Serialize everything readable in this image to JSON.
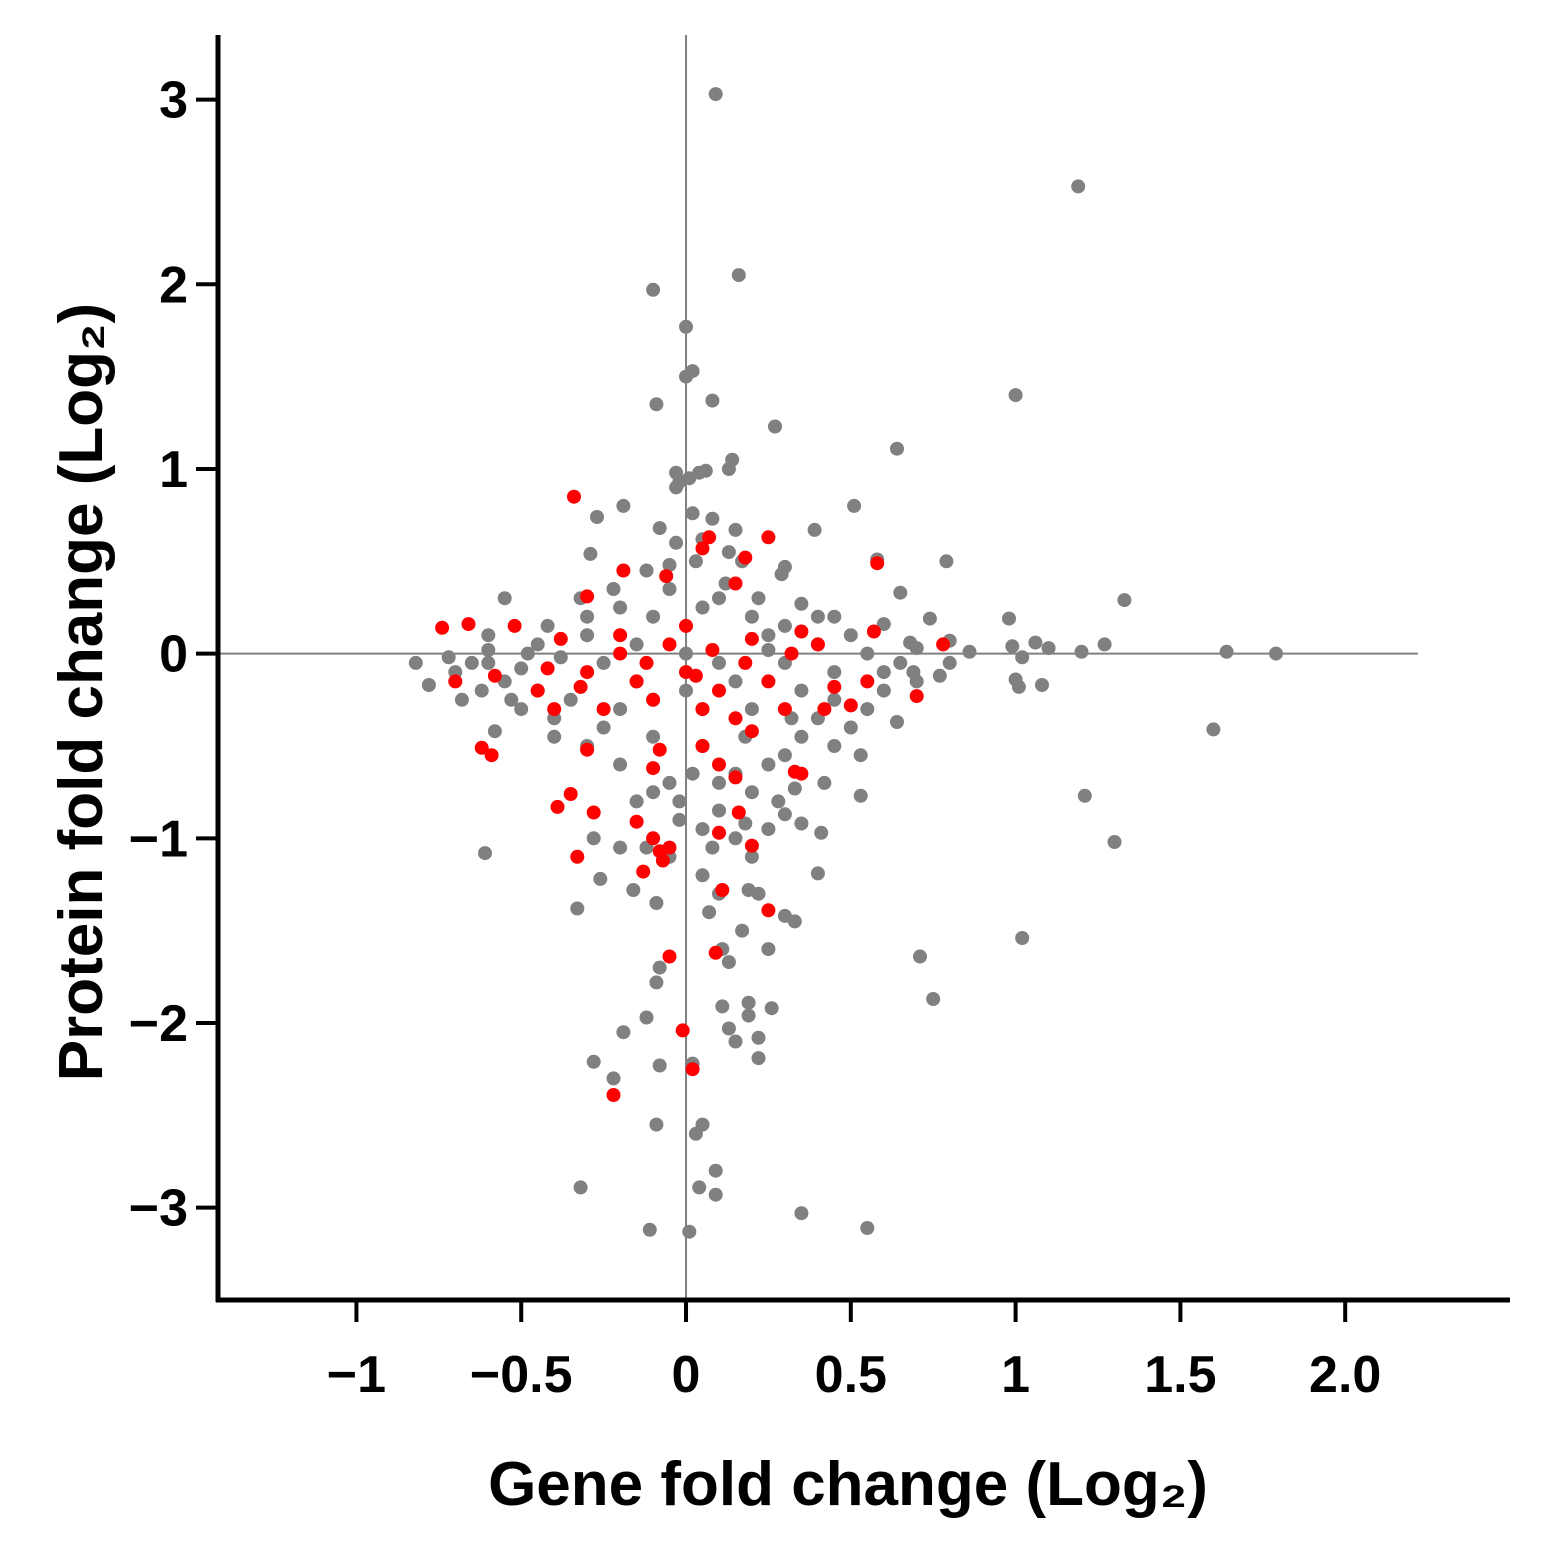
{
  "chart_data": {
    "type": "scatter",
    "xlabel": "Gene fold change (Log₂)",
    "ylabel": "Protein fold change (Log₂)",
    "xlim": [
      -1.42,
      2.5
    ],
    "ylim": [
      -3.5,
      3.35
    ],
    "x_ticks": [
      -1,
      -0.5,
      0,
      0.5,
      1,
      1.5,
      2.0
    ],
    "x_tick_labels": [
      "−1",
      "−0.5",
      "0",
      "0.5",
      "1",
      "1.5",
      "2.0"
    ],
    "y_ticks": [
      -3,
      -2,
      -1,
      0,
      1,
      2,
      3
    ],
    "y_tick_labels": [
      "−3",
      "−2",
      "−1",
      "0",
      "1",
      "2",
      "3"
    ],
    "grid": false,
    "reference_lines": {
      "x": 0,
      "y": 0
    },
    "series": [
      {
        "color": "#808080",
        "points": [
          [
            0.09,
            3.03
          ],
          [
            1.19,
            2.53
          ],
          [
            0.16,
            2.05
          ],
          [
            -0.1,
            1.97
          ],
          [
            0.0,
            1.77
          ],
          [
            0.0,
            1.5
          ],
          [
            0.02,
            1.53
          ],
          [
            0.08,
            1.37
          ],
          [
            -0.09,
            1.35
          ],
          [
            1.0,
            1.4
          ],
          [
            0.27,
            1.23
          ],
          [
            0.64,
            1.11
          ],
          [
            0.14,
            1.05
          ],
          [
            0.13,
            1.0
          ],
          [
            -0.03,
            0.98
          ],
          [
            0.04,
            0.98
          ],
          [
            0.06,
            0.99
          ],
          [
            -0.02,
            0.93
          ],
          [
            0.01,
            0.95
          ],
          [
            -0.03,
            0.9
          ],
          [
            0.51,
            0.8
          ],
          [
            -0.19,
            0.8
          ],
          [
            -0.27,
            0.74
          ],
          [
            0.08,
            0.73
          ],
          [
            0.02,
            0.76
          ],
          [
            0.39,
            0.67
          ],
          [
            0.15,
            0.67
          ],
          [
            -0.08,
            0.68
          ],
          [
            -0.03,
            0.6
          ],
          [
            0.05,
            0.62
          ],
          [
            0.79,
            0.5
          ],
          [
            0.58,
            0.51
          ],
          [
            0.3,
            0.47
          ],
          [
            0.29,
            0.43
          ],
          [
            -0.29,
            0.54
          ],
          [
            0.13,
            0.55
          ],
          [
            0.17,
            0.5
          ],
          [
            -0.12,
            0.45
          ],
          [
            0.03,
            0.5
          ],
          [
            -0.05,
            0.48
          ],
          [
            1.33,
            0.29
          ],
          [
            0.65,
            0.33
          ],
          [
            0.74,
            0.19
          ],
          [
            0.35,
            0.27
          ],
          [
            0.22,
            0.3
          ],
          [
            -0.55,
            0.3
          ],
          [
            -0.32,
            0.3
          ],
          [
            0.1,
            0.3
          ],
          [
            -0.2,
            0.25
          ],
          [
            0.45,
            0.2
          ],
          [
            0.98,
            0.19
          ],
          [
            0.6,
            0.16
          ],
          [
            0.4,
            0.2
          ],
          [
            0.2,
            0.2
          ],
          [
            -0.42,
            0.15
          ],
          [
            -0.6,
            0.1
          ],
          [
            0.8,
            0.07
          ],
          [
            0.68,
            0.06
          ],
          [
            0.5,
            0.1
          ],
          [
            0.3,
            0.15
          ],
          [
            1.06,
            0.06
          ],
          [
            1.1,
            0.03
          ],
          [
            1.27,
            0.05
          ],
          [
            1.2,
            0.01
          ],
          [
            1.64,
            0.01
          ],
          [
            1.79,
            0.0
          ],
          [
            0.99,
            0.04
          ],
          [
            1.02,
            -0.02
          ],
          [
            0.86,
            0.01
          ],
          [
            0.7,
            0.03
          ],
          [
            -0.82,
            -0.05
          ],
          [
            -0.78,
            -0.17
          ],
          [
            -0.68,
            -0.25
          ],
          [
            -0.7,
            -0.1
          ],
          [
            -0.65,
            -0.05
          ],
          [
            -0.5,
            -0.3
          ],
          [
            -0.45,
            -0.2
          ],
          [
            -0.55,
            -0.15
          ],
          [
            -0.6,
            -0.05
          ],
          [
            -0.48,
            0.0
          ],
          [
            1.0,
            -0.14
          ],
          [
            1.08,
            -0.17
          ],
          [
            1.01,
            -0.18
          ],
          [
            0.77,
            -0.12
          ],
          [
            0.69,
            -0.1
          ],
          [
            0.6,
            -0.2
          ],
          [
            0.55,
            -0.3
          ],
          [
            0.45,
            -0.25
          ],
          [
            0.5,
            -0.4
          ],
          [
            0.4,
            -0.35
          ],
          [
            1.6,
            -0.41
          ],
          [
            0.64,
            -0.37
          ],
          [
            0.53,
            -0.55
          ],
          [
            0.45,
            -0.5
          ],
          [
            0.35,
            -0.45
          ],
          [
            0.3,
            -0.55
          ],
          [
            0.25,
            -0.6
          ],
          [
            -0.58,
            -0.42
          ],
          [
            -0.4,
            -0.45
          ],
          [
            -0.3,
            -0.5
          ],
          [
            0.53,
            -0.77
          ],
          [
            0.42,
            -0.7
          ],
          [
            0.33,
            -0.73
          ],
          [
            0.28,
            -0.8
          ],
          [
            0.2,
            -0.75
          ],
          [
            0.15,
            -0.65
          ],
          [
            0.1,
            -0.7
          ],
          [
            -0.05,
            -0.7
          ],
          [
            -0.1,
            -0.75
          ],
          [
            -0.2,
            -0.6
          ],
          [
            1.21,
            -0.77
          ],
          [
            0.35,
            -0.92
          ],
          [
            0.3,
            -0.87
          ],
          [
            0.41,
            -0.97
          ],
          [
            0.25,
            -0.95
          ],
          [
            0.18,
            -0.92
          ],
          [
            0.1,
            -0.85
          ],
          [
            0.05,
            -0.95
          ],
          [
            -0.02,
            -0.9
          ],
          [
            -0.15,
            -0.8
          ],
          [
            1.3,
            -1.02
          ],
          [
            -0.61,
            -1.08
          ],
          [
            0.4,
            -1.19
          ],
          [
            0.2,
            -1.1
          ],
          [
            0.15,
            -1.0
          ],
          [
            0.08,
            -1.05
          ],
          [
            -0.05,
            -1.1
          ],
          [
            -0.12,
            -1.05
          ],
          [
            -0.2,
            -1.05
          ],
          [
            -0.28,
            -1.0
          ],
          [
            0.19,
            -1.28
          ],
          [
            -0.26,
            -1.22
          ],
          [
            -0.16,
            -1.28
          ],
          [
            -0.09,
            -1.35
          ],
          [
            -0.33,
            -1.38
          ],
          [
            0.05,
            -1.2
          ],
          [
            0.1,
            -1.3
          ],
          [
            0.22,
            -1.3
          ],
          [
            0.3,
            -1.42
          ],
          [
            0.33,
            -1.45
          ],
          [
            0.07,
            -1.4
          ],
          [
            0.17,
            -1.5
          ],
          [
            0.25,
            -1.6
          ],
          [
            0.13,
            -1.67
          ],
          [
            -0.08,
            -1.7
          ],
          [
            -0.09,
            -1.78
          ],
          [
            0.71,
            -1.64
          ],
          [
            0.75,
            -1.87
          ],
          [
            1.02,
            -1.54
          ],
          [
            0.11,
            -1.6
          ],
          [
            0.11,
            -1.91
          ],
          [
            0.19,
            -1.89
          ],
          [
            0.19,
            -1.96
          ],
          [
            0.13,
            -2.03
          ],
          [
            0.15,
            -2.1
          ],
          [
            0.22,
            -2.08
          ],
          [
            0.22,
            -2.19
          ],
          [
            0.26,
            -1.92
          ],
          [
            -0.12,
            -1.97
          ],
          [
            -0.19,
            -2.05
          ],
          [
            -0.08,
            -2.23
          ],
          [
            -0.28,
            -2.21
          ],
          [
            -0.22,
            -2.3
          ],
          [
            0.02,
            -2.22
          ],
          [
            0.03,
            -2.6
          ],
          [
            0.05,
            -2.55
          ],
          [
            -0.09,
            -2.55
          ],
          [
            0.09,
            -2.8
          ],
          [
            0.04,
            -2.89
          ],
          [
            0.09,
            -2.93
          ],
          [
            -0.32,
            -2.89
          ],
          [
            0.35,
            -3.03
          ],
          [
            -0.11,
            -3.12
          ],
          [
            0.01,
            -3.13
          ],
          [
            0.55,
            -3.11
          ],
          [
            -0.02,
            -0.8
          ],
          [
            0.02,
            -0.65
          ],
          [
            0.6,
            -0.1
          ],
          [
            0.8,
            -0.05
          ],
          [
            0.7,
            -0.15
          ],
          [
            -0.6,
            0.02
          ],
          [
            -0.72,
            -0.02
          ],
          [
            -0.5,
            -0.08
          ],
          [
            -0.38,
            -0.02
          ],
          [
            -0.25,
            -0.05
          ],
          [
            -0.15,
            0.05
          ],
          [
            0.0,
            0.0
          ],
          [
            0.1,
            -0.05
          ],
          [
            0.25,
            0.02
          ],
          [
            0.4,
            0.05
          ],
          [
            -0.35,
            -0.25
          ],
          [
            -0.2,
            -0.3
          ],
          [
            -0.1,
            -0.25
          ],
          [
            0.05,
            -0.3
          ],
          [
            0.2,
            -0.3
          ],
          [
            0.35,
            -0.2
          ],
          [
            -0.3,
            0.2
          ],
          [
            -0.1,
            0.2
          ],
          [
            0.05,
            0.25
          ],
          [
            0.25,
            0.1
          ],
          [
            -0.45,
            0.05
          ],
          [
            -0.3,
            0.1
          ],
          [
            -0.15,
            -0.15
          ],
          [
            0.0,
            -0.2
          ],
          [
            0.15,
            -0.15
          ],
          [
            0.3,
            -0.05
          ],
          [
            0.45,
            -0.1
          ],
          [
            -0.05,
            0.35
          ],
          [
            0.12,
            0.38
          ],
          [
            -0.22,
            0.35
          ],
          [
            0.55,
            0.0
          ],
          [
            0.65,
            -0.05
          ],
          [
            -0.62,
            -0.2
          ],
          [
            -0.53,
            -0.25
          ],
          [
            -0.4,
            -0.35
          ],
          [
            -0.25,
            -0.4
          ],
          [
            -0.1,
            -0.45
          ],
          [
            0.05,
            -0.5
          ],
          [
            0.18,
            -0.45
          ],
          [
            0.32,
            -0.35
          ]
        ]
      },
      {
        "color": "#ff0000",
        "points": [
          [
            -0.34,
            0.85
          ],
          [
            0.25,
            0.63
          ],
          [
            0.07,
            0.63
          ],
          [
            0.05,
            0.57
          ],
          [
            0.58,
            0.49
          ],
          [
            0.18,
            0.52
          ],
          [
            -0.19,
            0.45
          ],
          [
            -0.06,
            0.42
          ],
          [
            0.15,
            0.38
          ],
          [
            -0.3,
            0.31
          ],
          [
            -0.74,
            0.14
          ],
          [
            -0.66,
            0.16
          ],
          [
            0.57,
            0.12
          ],
          [
            0.35,
            0.12
          ],
          [
            -0.52,
            0.15
          ],
          [
            -0.38,
            0.08
          ],
          [
            -0.2,
            0.1
          ],
          [
            0.0,
            0.15
          ],
          [
            0.2,
            0.08
          ],
          [
            0.4,
            0.05
          ],
          [
            -0.7,
            -0.15
          ],
          [
            -0.58,
            -0.12
          ],
          [
            -0.45,
            -0.2
          ],
          [
            -0.3,
            -0.1
          ],
          [
            -0.15,
            -0.15
          ],
          [
            0.0,
            -0.1
          ],
          [
            0.1,
            -0.2
          ],
          [
            0.25,
            -0.15
          ],
          [
            0.45,
            -0.18
          ],
          [
            0.55,
            -0.15
          ],
          [
            0.5,
            -0.28
          ],
          [
            0.7,
            -0.23
          ],
          [
            0.78,
            0.05
          ],
          [
            -0.4,
            -0.3
          ],
          [
            -0.25,
            -0.3
          ],
          [
            -0.1,
            -0.25
          ],
          [
            0.05,
            -0.3
          ],
          [
            0.15,
            -0.35
          ],
          [
            0.3,
            -0.3
          ],
          [
            0.42,
            -0.3
          ],
          [
            -0.62,
            -0.51
          ],
          [
            -0.59,
            -0.55
          ],
          [
            -0.3,
            -0.52
          ],
          [
            -0.08,
            -0.52
          ],
          [
            0.05,
            -0.5
          ],
          [
            0.2,
            -0.42
          ],
          [
            0.33,
            -0.64
          ],
          [
            0.35,
            -0.65
          ],
          [
            -0.1,
            -0.62
          ],
          [
            0.1,
            -0.6
          ],
          [
            -0.35,
            -0.76
          ],
          [
            -0.39,
            -0.83
          ],
          [
            -0.28,
            -0.86
          ],
          [
            0.15,
            -0.67
          ],
          [
            0.16,
            -0.86
          ],
          [
            -0.15,
            -0.91
          ],
          [
            0.1,
            -0.97
          ],
          [
            -0.1,
            -1.0
          ],
          [
            0.2,
            -1.04
          ],
          [
            -0.05,
            -1.05
          ],
          [
            -0.33,
            -1.1
          ],
          [
            -0.08,
            -1.07
          ],
          [
            -0.07,
            -1.12
          ],
          [
            -0.13,
            -1.18
          ],
          [
            0.11,
            -1.28
          ],
          [
            0.25,
            -1.39
          ],
          [
            -0.05,
            -1.64
          ],
          [
            0.09,
            -1.62
          ],
          [
            -0.01,
            -2.04
          ],
          [
            0.02,
            -2.25
          ],
          [
            -0.22,
            -2.39
          ],
          [
            -0.2,
            0.0
          ],
          [
            -0.05,
            0.05
          ],
          [
            0.08,
            0.02
          ],
          [
            0.18,
            -0.05
          ],
          [
            -0.12,
            -0.05
          ],
          [
            0.03,
            -0.12
          ],
          [
            -0.32,
            -0.18
          ],
          [
            0.32,
            0.0
          ],
          [
            -0.42,
            -0.08
          ]
        ]
      }
    ]
  }
}
